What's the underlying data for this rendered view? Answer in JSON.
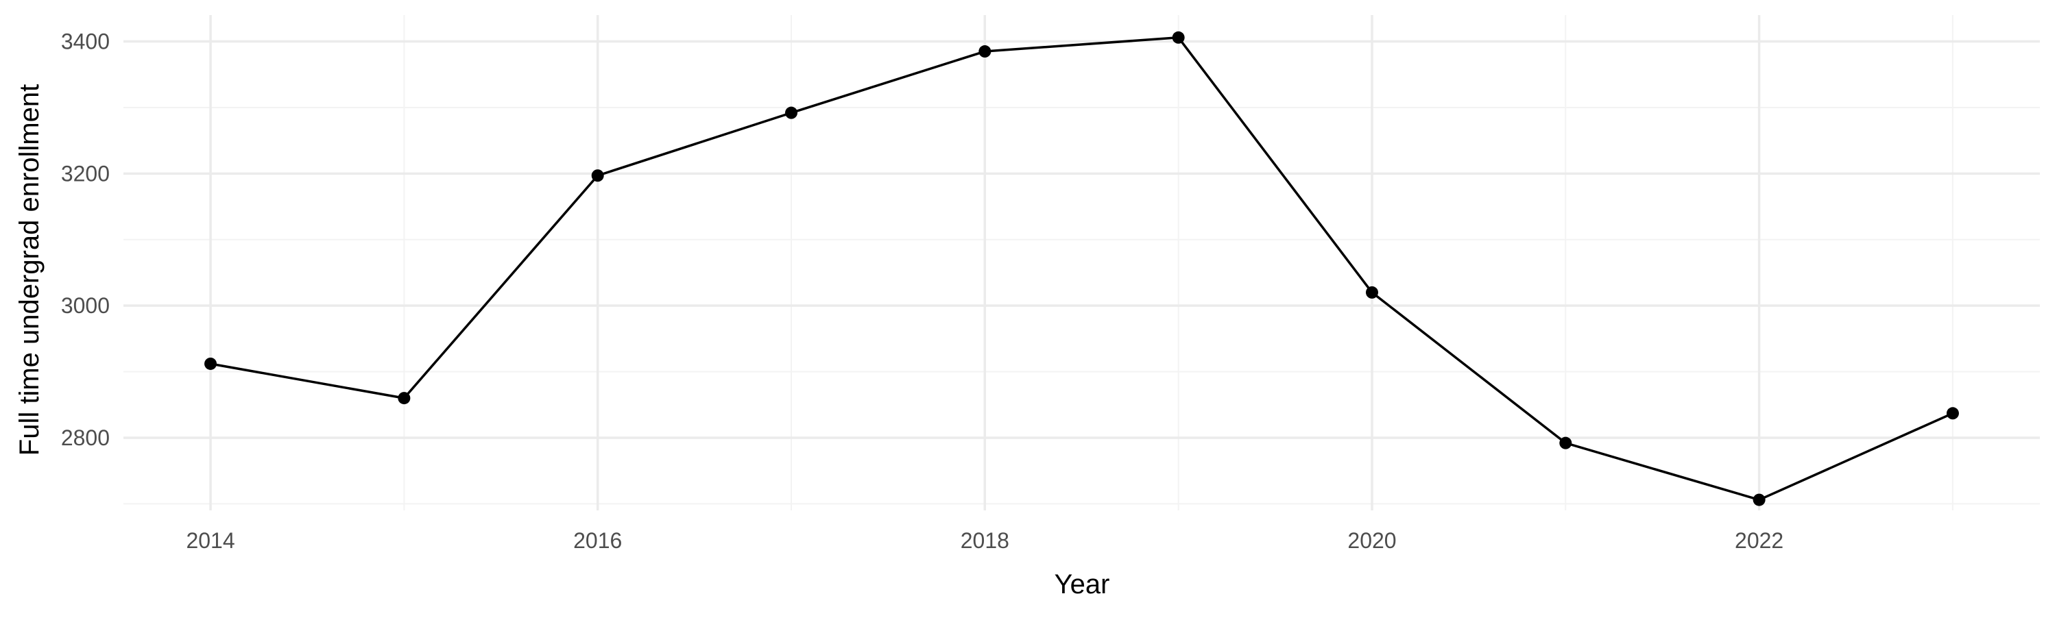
{
  "chart_data": {
    "type": "line",
    "title": "",
    "xlabel": "Year",
    "ylabel": "Full time undergrad enrollment",
    "x": [
      2014,
      2015,
      2016,
      2017,
      2018,
      2019,
      2020,
      2021,
      2022,
      2023
    ],
    "series": [
      {
        "values": [
          2912,
          2860,
          3197,
          3292,
          3385,
          3406,
          3020,
          2792,
          2706,
          2837
        ]
      }
    ],
    "xlim": [
      2013.55,
      2023.45
    ],
    "ylim": [
      2690,
      3440
    ],
    "x_ticks": [
      2014,
      2016,
      2018,
      2020,
      2022
    ],
    "x_minor_ticks": [
      2015,
      2017,
      2019,
      2021,
      2023
    ],
    "y_ticks": [
      2800,
      3000,
      3200,
      3400
    ],
    "y_minor_ticks": [
      2700,
      2900,
      3100,
      3300
    ],
    "grid": true,
    "legend": "none",
    "colors": {
      "line": "#000000",
      "point": "#000000",
      "grid_major": "#ebebeb",
      "grid_minor": "#f3f3f3",
      "tick_label": "#4d4d4d",
      "axis_title": "#000000"
    }
  }
}
